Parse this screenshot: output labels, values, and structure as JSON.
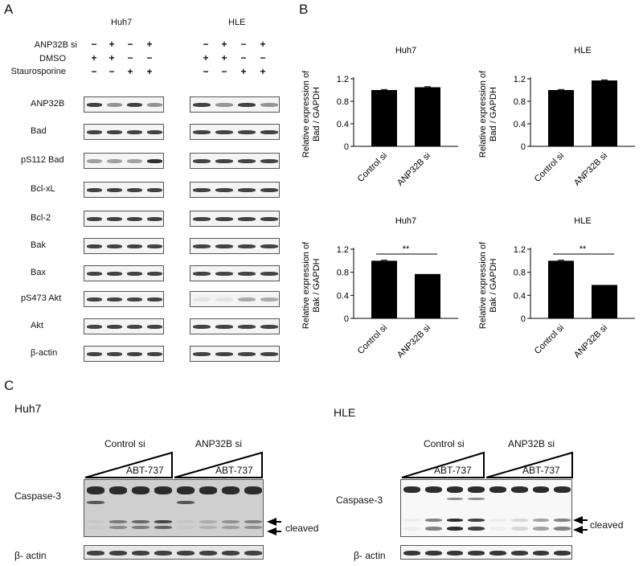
{
  "panelA": {
    "letter": "A",
    "cell_lines": [
      "Huh7",
      "HLE"
    ],
    "conditions": [
      {
        "name": "ANP32B si",
        "signs": [
          "−",
          "+",
          "−",
          "+"
        ]
      },
      {
        "name": "DMSO",
        "signs": [
          "+",
          "+",
          "−",
          "−"
        ]
      },
      {
        "name": "Staurosporine",
        "signs": [
          "−",
          "−",
          "+",
          "+"
        ]
      }
    ],
    "blots": [
      "ANP32B",
      "Bad",
      "pS112 Bad",
      "Bcl-xL",
      "Bcl-2",
      "Bak",
      "Bax",
      "pS473 Akt",
      "Akt",
      "β-actin"
    ]
  },
  "panelB": {
    "letter": "B",
    "ylabel_bad": "Relative expression of\nBad / GAPDH",
    "ylabel_bak": "Relative expression of\nBak / GAPDH",
    "sig_marker": "**"
  },
  "chart_data": [
    {
      "type": "bar",
      "title": "Huh7",
      "categories": [
        "Control si",
        "ANP32B si"
      ],
      "values": [
        1.0,
        1.05
      ],
      "errors": [
        0.01,
        0.01
      ],
      "ylabel": "Relative expression of Bad / GAPDH",
      "ylim": [
        0,
        1.2
      ],
      "yticks": [
        "0",
        "0.4",
        "0.8",
        "1.2"
      ],
      "significance": ""
    },
    {
      "type": "bar",
      "title": "HLE",
      "categories": [
        "Control si",
        "ANP32B si"
      ],
      "values": [
        1.0,
        1.17
      ],
      "errors": [
        0.01,
        0.01
      ],
      "ylabel": "Relative expression of Bad / GAPDH",
      "ylim": [
        0,
        1.2
      ],
      "yticks": [
        "0",
        "0.4",
        "0.8",
        "1.2"
      ],
      "significance": ""
    },
    {
      "type": "bar",
      "title": "Huh7",
      "categories": [
        "Control si",
        "ANP32B si"
      ],
      "values": [
        1.0,
        0.77
      ],
      "errors": [
        0.01,
        0.0
      ],
      "ylabel": "Relative expression of Bak / GAPDH",
      "ylim": [
        0,
        1.2
      ],
      "yticks": [
        "0",
        "0.4",
        "0.8",
        "1.2"
      ],
      "significance": "**"
    },
    {
      "type": "bar",
      "title": "HLE",
      "categories": [
        "Control si",
        "ANP32B si"
      ],
      "values": [
        1.0,
        0.58
      ],
      "errors": [
        0.01,
        0.0
      ],
      "ylabel": "Relative expression of Bak / GAPDH",
      "ylim": [
        0,
        1.2
      ],
      "yticks": [
        "0",
        "0.4",
        "0.8",
        "1.2"
      ],
      "significance": "**"
    }
  ],
  "panelC": {
    "letter": "C",
    "left": {
      "title": "Huh7",
      "groups": [
        "Control si",
        "ANP32B si"
      ],
      "drug": "ABT-737",
      "rows": [
        "Caspase-3",
        "β- actin"
      ],
      "cleaved": "cleaved"
    },
    "right": {
      "title": "HLE",
      "groups": [
        "Control si",
        "ANP32B si"
      ],
      "drug": "ABT-737",
      "rows": [
        "Caspase-3",
        "β- actin"
      ],
      "cleaved": "cleaved"
    }
  }
}
